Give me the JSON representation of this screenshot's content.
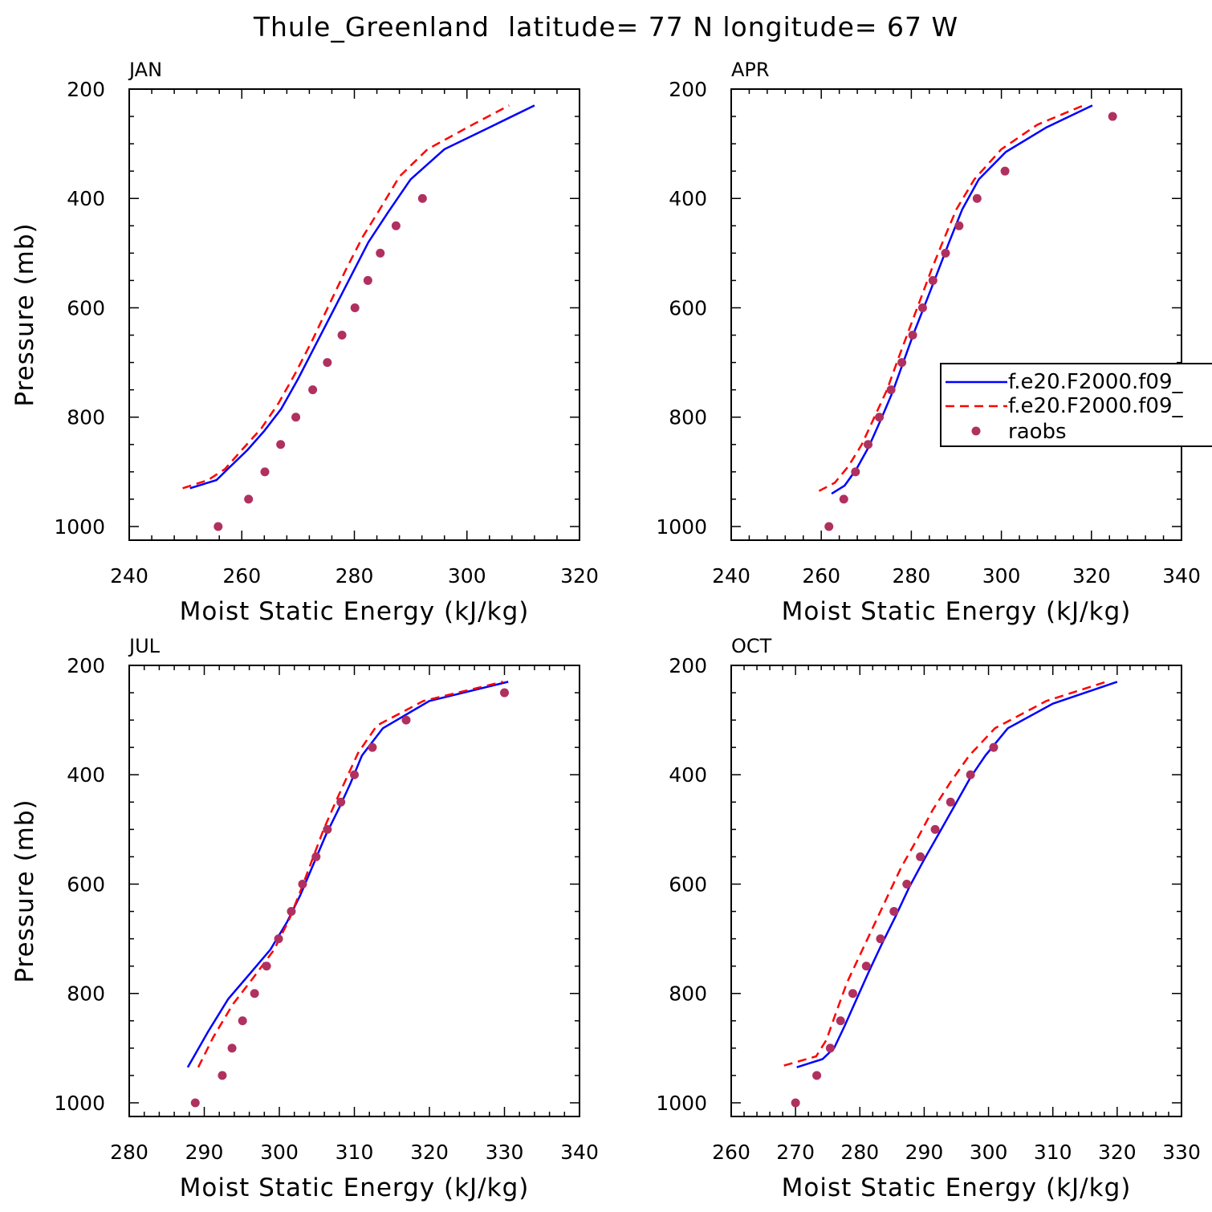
{
  "title": "Thule_Greenland  latitude= 77 N longitude= 67 W",
  "colors": {
    "model1": "#0000ff",
    "model2": "#ff0000",
    "obs": "#b0305f"
  },
  "legend": [
    {
      "label": "f.e20.F2000.f09_",
      "style": "solid-line",
      "color": "#0000ff"
    },
    {
      "label": "f.e20.F2000.f09_",
      "style": "dashed-line",
      "color": "#ff0000"
    },
    {
      "label": "raobs",
      "style": "dot",
      "color": "#b0305f"
    }
  ],
  "chart_data": [
    {
      "type": "line",
      "panel": "JAN",
      "xlabel": "Moist Static Energy (kJ/kg)",
      "ylabel": "Pressure (mb)",
      "xlim": [
        240,
        320
      ],
      "ylim": [
        1025,
        200
      ],
      "xticks": [
        240,
        260,
        280,
        300,
        320
      ],
      "yticks": [
        200,
        400,
        600,
        800,
        1000
      ],
      "series": [
        {
          "kind": "model1",
          "x": [
            250.8,
            255.5,
            258,
            261,
            264,
            267,
            270,
            273,
            276.5,
            279.5,
            282.5,
            286,
            290,
            296,
            304,
            312
          ],
          "y": [
            930,
            915,
            890,
            860,
            825,
            785,
            730,
            670,
            600,
            540,
            480,
            425,
            365,
            310,
            270,
            230
          ]
        },
        {
          "kind": "model2",
          "x": [
            249.5,
            254,
            257,
            260,
            263.5,
            266.5,
            269.5,
            272.5,
            275.5,
            278.5,
            281.5,
            284.5,
            288,
            293,
            301,
            307.5
          ],
          "y": [
            930,
            915,
            895,
            860,
            820,
            775,
            720,
            660,
            595,
            530,
            470,
            420,
            360,
            310,
            265,
            230
          ]
        },
        {
          "kind": "obs",
          "x": [
            255.8,
            261.2,
            264.1,
            266.9,
            269.6,
            272.6,
            275.2,
            277.8,
            280.1,
            282.4,
            284.6,
            287.4,
            292.1
          ],
          "y": [
            1000,
            950,
            900,
            850,
            800,
            750,
            700,
            650,
            600,
            550,
            500,
            450,
            400
          ]
        }
      ]
    },
    {
      "type": "line",
      "panel": "APR",
      "xlabel": "Moist Static Energy (kJ/kg)",
      "ylabel": "",
      "xlim": [
        240,
        340
      ],
      "ylim": [
        1025,
        200
      ],
      "xticks": [
        240,
        260,
        280,
        300,
        320,
        340
      ],
      "yticks": [
        200,
        400,
        600,
        800,
        1000
      ],
      "series": [
        {
          "kind": "model1",
          "x": [
            262.3,
            265.2,
            267.8,
            270.5,
            273.2,
            275.8,
            278.2,
            280.6,
            283,
            285.6,
            288.4,
            291.3,
            295,
            301,
            310,
            320.2
          ],
          "y": [
            940,
            925,
            895,
            855,
            805,
            755,
            700,
            645,
            595,
            540,
            480,
            420,
            365,
            315,
            270,
            230
          ]
        },
        {
          "kind": "model2",
          "x": [
            259.5,
            263,
            266,
            269,
            271.8,
            274.6,
            277,
            279.5,
            282,
            284.5,
            287.2,
            290,
            294,
            300,
            308,
            318.2
          ],
          "y": [
            935,
            920,
            890,
            850,
            800,
            750,
            695,
            640,
            585,
            530,
            475,
            420,
            365,
            310,
            265,
            230
          ]
        },
        {
          "kind": "obs",
          "x": [
            261.7,
            265,
            267.6,
            270.4,
            272.9,
            275.5,
            277.9,
            280.3,
            282.5,
            284.8,
            287.6,
            290.6,
            294.6,
            300.8,
            324.7
          ],
          "y": [
            1000,
            950,
            900,
            850,
            800,
            750,
            700,
            650,
            600,
            550,
            500,
            450,
            400,
            350,
            250
          ]
        }
      ]
    },
    {
      "type": "line",
      "panel": "JUL",
      "xlabel": "Moist Static Energy (kJ/kg)",
      "ylabel": "Pressure (mb)",
      "xlim": [
        280,
        340
      ],
      "ylim": [
        1025,
        200
      ],
      "xticks": [
        280,
        290,
        300,
        310,
        320,
        330,
        340
      ],
      "yticks": [
        200,
        400,
        600,
        800,
        1000
      ],
      "series": [
        {
          "kind": "model1",
          "x": [
            287.8,
            290.5,
            293.2,
            296,
            298.8,
            301,
            302.8,
            304.5,
            306.2,
            308,
            309.5,
            311,
            313.8,
            320,
            330.5
          ],
          "y": [
            935,
            870,
            810,
            765,
            720,
            670,
            620,
            565,
            510,
            460,
            415,
            365,
            315,
            265,
            230
          ]
        },
        {
          "kind": "model2",
          "x": [
            289.2,
            291.2,
            293.8,
            296.6,
            299.3,
            301.3,
            302.9,
            304.4,
            305.9,
            307.5,
            309,
            310.5,
            313,
            319.2,
            329.8
          ],
          "y": [
            935,
            880,
            820,
            770,
            720,
            665,
            610,
            555,
            500,
            450,
            405,
            360,
            310,
            265,
            230
          ]
        },
        {
          "kind": "obs",
          "x": [
            288.8,
            292.4,
            293.7,
            295.1,
            296.7,
            298.3,
            299.9,
            301.6,
            303.1,
            304.9,
            306.4,
            308.2,
            310,
            312.4,
            316.9,
            330
          ],
          "y": [
            1000,
            950,
            900,
            850,
            800,
            750,
            700,
            650,
            600,
            550,
            500,
            450,
            400,
            350,
            300,
            250
          ]
        }
      ]
    },
    {
      "type": "line",
      "panel": "OCT",
      "xlabel": "Moist Static Energy (kJ/kg)",
      "ylabel": "",
      "xlim": [
        260,
        330
      ],
      "ylim": [
        1025,
        200
      ],
      "xticks": [
        260,
        270,
        280,
        290,
        300,
        310,
        320,
        330
      ],
      "yticks": [
        200,
        400,
        600,
        800,
        1000
      ],
      "series": [
        {
          "kind": "model1",
          "x": [
            270.2,
            274.2,
            276,
            277.6,
            279.5,
            281.4,
            283.4,
            285.5,
            287.7,
            290,
            292.4,
            294.8,
            297.2,
            299.5,
            303,
            310,
            320
          ],
          "y": [
            935,
            920,
            900,
            860,
            810,
            760,
            710,
            660,
            605,
            555,
            505,
            455,
            405,
            365,
            315,
            270,
            230
          ]
        },
        {
          "kind": "model2",
          "x": [
            268.2,
            273.2,
            274.8,
            276.3,
            278,
            280,
            282,
            284.2,
            286.4,
            288.8,
            291.3,
            294,
            297,
            301,
            309,
            318.3
          ],
          "y": [
            932,
            915,
            885,
            835,
            780,
            730,
            680,
            625,
            570,
            520,
            465,
            415,
            365,
            315,
            265,
            230
          ]
        },
        {
          "kind": "obs",
          "x": [
            270,
            273.3,
            275.4,
            277,
            278.9,
            281,
            283.2,
            285.3,
            287.3,
            289.4,
            291.7,
            294.1,
            297.2,
            300.8
          ],
          "y": [
            1000,
            950,
            900,
            850,
            800,
            750,
            700,
            650,
            600,
            550,
            500,
            450,
            400,
            350
          ]
        }
      ]
    }
  ]
}
